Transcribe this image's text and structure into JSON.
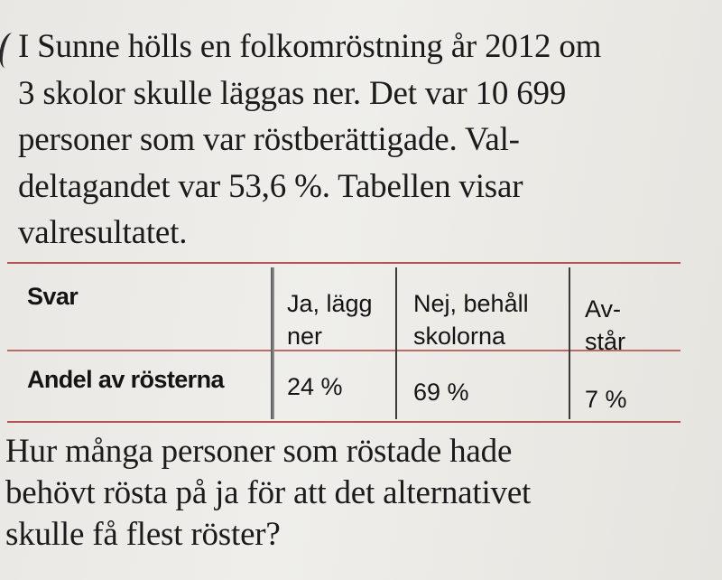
{
  "intro": {
    "lines": [
      "I Sunne hölls en folkomröstning år 2012 om",
      "3 skolor skulle läggas ner. Det var 10 699",
      "personer som var röstberättigade. Val-",
      "deltagandet var 53,6 %. Tabellen visar",
      "valresultatet."
    ]
  },
  "table": {
    "header": {
      "label": "Svar",
      "col1": [
        "Ja, lägg",
        "ner"
      ],
      "col2": [
        "Nej, behåll",
        "skolorna"
      ],
      "col3": [
        "Av-",
        "står"
      ]
    },
    "row": {
      "label": "Andel av rösterna",
      "col1": "24 %",
      "col2": "69 %",
      "col3": "7 %"
    }
  },
  "question": {
    "lines": [
      "Hur många personer som röstade hade",
      "behövt rösta på ja för att det alternativet",
      "skulle få flest röster?"
    ]
  }
}
